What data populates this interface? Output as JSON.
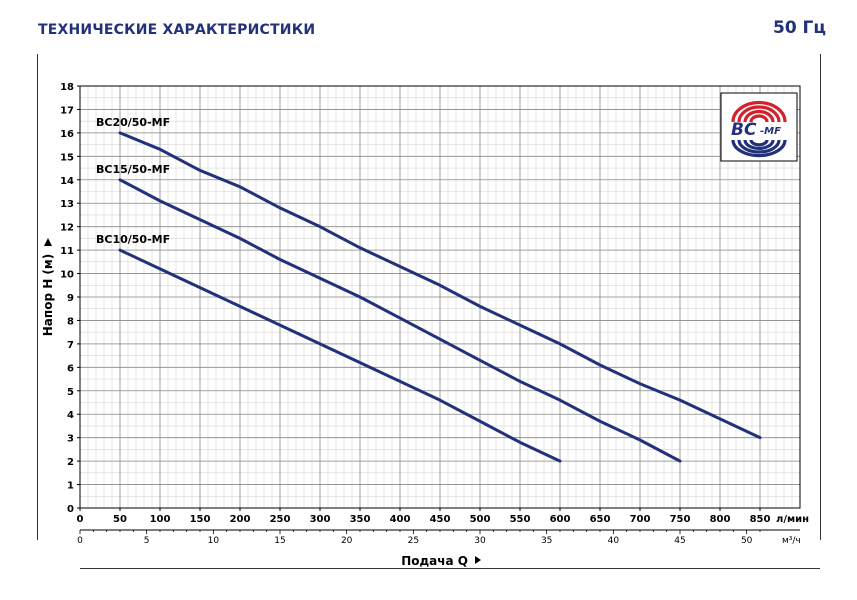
{
  "header": {
    "title": "ТЕХНИЧЕСКИЕ ХАРАКТЕРИСТИКИ",
    "frequency": "50 Гц"
  },
  "logo": {
    "text": "BC",
    "suffix": "-MF",
    "colors": {
      "red": "#d4202a",
      "blue": "#22317a"
    }
  },
  "chart_data": {
    "type": "line",
    "ylabel": "Напор H  (м)",
    "xlabel": "Подача Q",
    "x_unit": "л/мин",
    "x2_unit": "м³/ч",
    "xlim": [
      0,
      900
    ],
    "ylim": [
      0,
      18
    ],
    "x_ticks": [
      0,
      50,
      100,
      150,
      200,
      250,
      300,
      350,
      400,
      450,
      500,
      550,
      600,
      650,
      700,
      750,
      800,
      850
    ],
    "x2_ticks": [
      0,
      5,
      10,
      15,
      20,
      25,
      30,
      35,
      40,
      45,
      50
    ],
    "y_ticks": [
      0,
      1,
      2,
      3,
      4,
      5,
      6,
      7,
      8,
      9,
      10,
      11,
      12,
      13,
      14,
      15,
      16,
      17,
      18
    ],
    "grid": true,
    "line_color": "#22317a",
    "series": [
      {
        "name": "BC20/50-MF",
        "x": [
          50,
          100,
          150,
          200,
          250,
          300,
          350,
          400,
          450,
          500,
          550,
          600,
          650,
          700,
          750,
          800,
          850
        ],
        "y": [
          16,
          15.3,
          14.4,
          13.7,
          12.8,
          12,
          11.1,
          10.3,
          9.5,
          8.6,
          7.8,
          7,
          6.1,
          5.3,
          4.6,
          3.8,
          3
        ]
      },
      {
        "name": "BC15/50-MF",
        "x": [
          50,
          100,
          150,
          200,
          250,
          300,
          350,
          400,
          450,
          500,
          550,
          600,
          650,
          700,
          750
        ],
        "y": [
          14,
          13.1,
          12.3,
          11.5,
          10.6,
          9.8,
          9,
          8.1,
          7.2,
          6.3,
          5.4,
          4.6,
          3.7,
          2.9,
          2
        ]
      },
      {
        "name": "BC10/50-MF",
        "x": [
          50,
          100,
          150,
          200,
          250,
          300,
          350,
          400,
          450,
          500,
          550,
          600
        ],
        "y": [
          11,
          10.2,
          9.4,
          8.6,
          7.8,
          7,
          6.2,
          5.4,
          4.6,
          3.7,
          2.8,
          2
        ]
      }
    ]
  }
}
